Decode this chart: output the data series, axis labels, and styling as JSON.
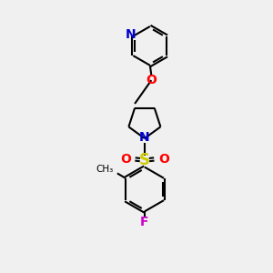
{
  "bg_color": "#f0f0f0",
  "bond_color": "#000000",
  "N_color": "#0000cc",
  "O_color": "#ff0000",
  "S_color": "#cccc00",
  "F_color": "#cc00cc",
  "line_width": 1.5,
  "font_size": 10,
  "fig_size": [
    3.0,
    3.0
  ],
  "dpi": 100,
  "xlim": [
    0,
    10
  ],
  "ylim": [
    0,
    10
  ]
}
